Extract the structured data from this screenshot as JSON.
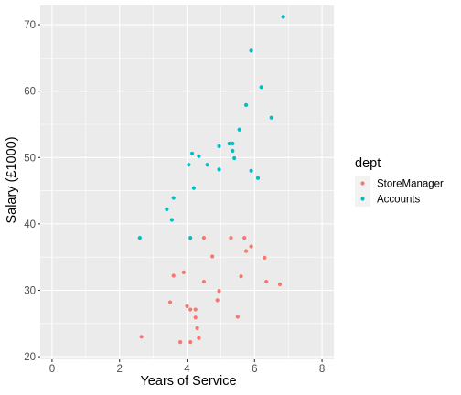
{
  "chart_data": {
    "type": "scatter",
    "title": "",
    "xlabel": "Years of Service",
    "ylabel": "Salary (£1000)",
    "xlim": [
      -0.35,
      8.35
    ],
    "ylim": [
      19.6,
      72.9
    ],
    "x_ticks": [
      0,
      2,
      4,
      6,
      8
    ],
    "y_ticks": [
      20,
      30,
      40,
      50,
      60,
      70
    ],
    "x_tick_labels": [
      "0",
      "2",
      "4",
      "6",
      "8"
    ],
    "y_tick_labels": [
      "20",
      "30",
      "40",
      "50",
      "60",
      "70"
    ],
    "grid": true,
    "legend": {
      "title": "dept",
      "position": "right"
    },
    "series": [
      {
        "name": "StoreManager",
        "color": "#F8766D",
        "points": [
          [
            2.65,
            23.0
          ],
          [
            3.5,
            28.2
          ],
          [
            3.6,
            32.2
          ],
          [
            3.8,
            22.2
          ],
          [
            3.9,
            32.7
          ],
          [
            4.0,
            27.6
          ],
          [
            4.1,
            22.2
          ],
          [
            4.1,
            27.1
          ],
          [
            4.25,
            27.1
          ],
          [
            4.25,
            25.9
          ],
          [
            4.3,
            24.3
          ],
          [
            4.35,
            22.8
          ],
          [
            4.5,
            37.9
          ],
          [
            4.5,
            31.3
          ],
          [
            4.75,
            35.1
          ],
          [
            4.9,
            28.5
          ],
          [
            4.95,
            29.9
          ],
          [
            5.3,
            37.9
          ],
          [
            5.5,
            26.0
          ],
          [
            5.6,
            32.1
          ],
          [
            5.7,
            37.9
          ],
          [
            5.75,
            35.9
          ],
          [
            5.9,
            36.6
          ],
          [
            6.3,
            34.9
          ],
          [
            6.35,
            31.3
          ],
          [
            6.75,
            30.9
          ]
        ]
      },
      {
        "name": "Accounts",
        "color": "#00BFC4",
        "points": [
          [
            2.6,
            37.9
          ],
          [
            3.4,
            42.2
          ],
          [
            3.55,
            40.6
          ],
          [
            3.6,
            43.9
          ],
          [
            4.05,
            48.9
          ],
          [
            4.1,
            37.9
          ],
          [
            4.15,
            50.6
          ],
          [
            4.2,
            45.4
          ],
          [
            4.35,
            50.2
          ],
          [
            4.6,
            48.9
          ],
          [
            4.95,
            51.7
          ],
          [
            4.95,
            48.2
          ],
          [
            5.25,
            52.1
          ],
          [
            5.35,
            52.1
          ],
          [
            5.35,
            51.0
          ],
          [
            5.4,
            49.9
          ],
          [
            5.55,
            54.2
          ],
          [
            5.75,
            57.9
          ],
          [
            5.9,
            66.1
          ],
          [
            5.9,
            48.0
          ],
          [
            6.1,
            46.9
          ],
          [
            6.2,
            60.6
          ],
          [
            6.5,
            56.0
          ],
          [
            6.85,
            71.2
          ]
        ]
      }
    ]
  }
}
